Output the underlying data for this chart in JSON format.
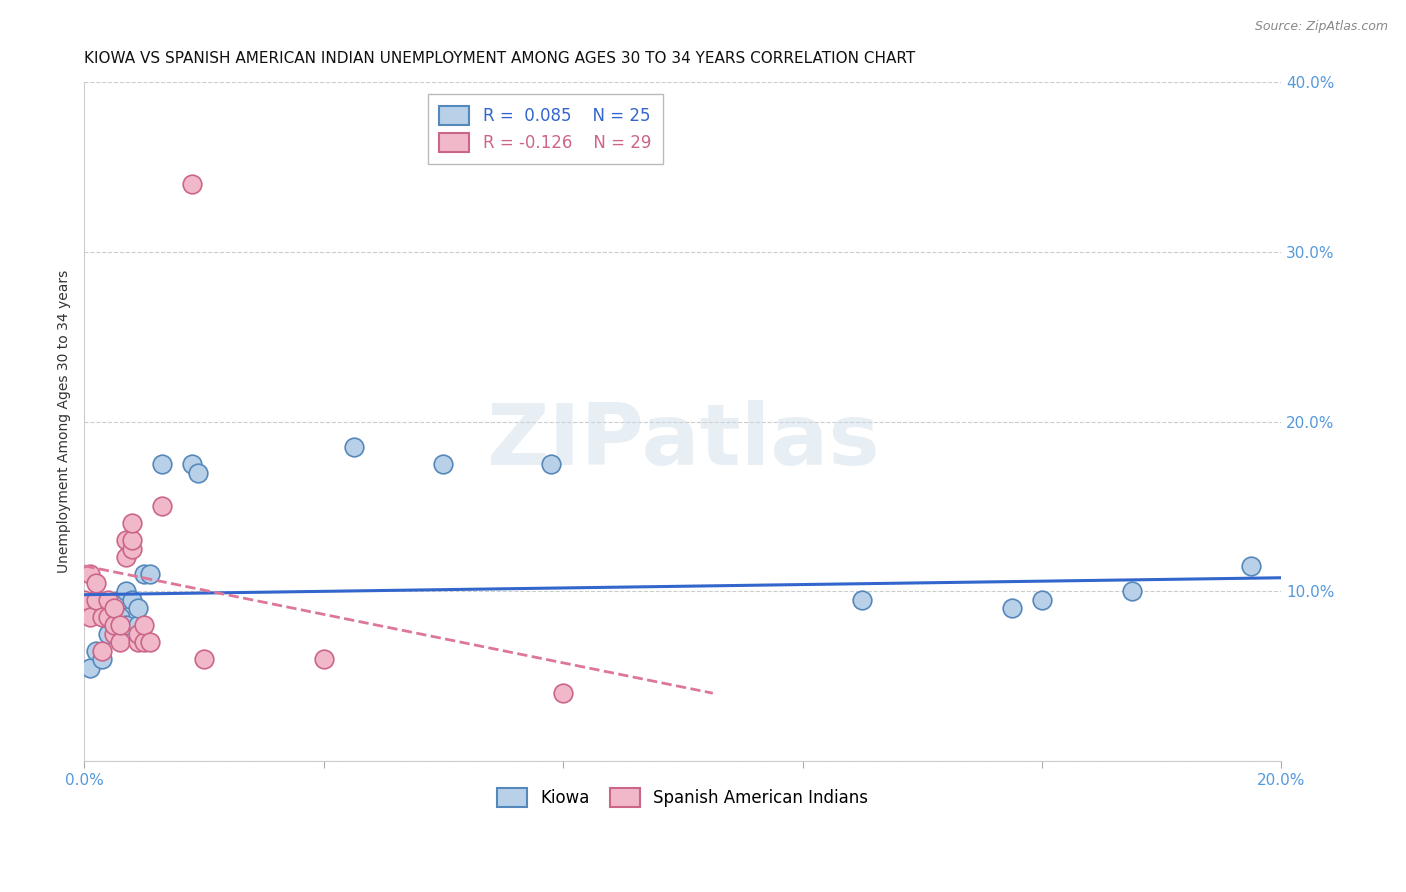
{
  "title": "KIOWA VS SPANISH AMERICAN INDIAN UNEMPLOYMENT AMONG AGES 30 TO 34 YEARS CORRELATION CHART",
  "source": "Source: ZipAtlas.com",
  "ylabel": "Unemployment Among Ages 30 to 34 years",
  "xlim": [
    0.0,
    0.2
  ],
  "ylim": [
    0.0,
    0.4
  ],
  "xticks": [
    0.0,
    0.04,
    0.08,
    0.12,
    0.16,
    0.2
  ],
  "yticks": [
    0.0,
    0.1,
    0.2,
    0.3,
    0.4
  ],
  "ytick_labels_right": [
    "",
    "10.0%",
    "20.0%",
    "30.0%",
    "40.0%"
  ],
  "kiowa_color": "#b8d0e8",
  "kiowa_edge_color": "#5588bb",
  "spanish_color": "#f0b8c8",
  "spanish_edge_color": "#cc6688",
  "trend_kiowa_color": "#3366cc",
  "trend_spanish_color": "#dd7799",
  "background_color": "#ffffff",
  "grid_color": "#cccccc",
  "kiowa_R": 0.085,
  "kiowa_N": 25,
  "spanish_R": -0.126,
  "spanish_N": 29,
  "kiowa_x": [
    0.001,
    0.002,
    0.003,
    0.004,
    0.005,
    0.006,
    0.006,
    0.007,
    0.007,
    0.008,
    0.009,
    0.009,
    0.01,
    0.011,
    0.013,
    0.018,
    0.019,
    0.045,
    0.06,
    0.078,
    0.13,
    0.155,
    0.16,
    0.175,
    0.195
  ],
  "kiowa_y": [
    0.055,
    0.065,
    0.06,
    0.075,
    0.08,
    0.085,
    0.095,
    0.08,
    0.1,
    0.095,
    0.08,
    0.09,
    0.11,
    0.11,
    0.175,
    0.175,
    0.17,
    0.185,
    0.175,
    0.175,
    0.095,
    0.09,
    0.095,
    0.1,
    0.115
  ],
  "spanish_x": [
    0.0,
    0.001,
    0.001,
    0.002,
    0.002,
    0.003,
    0.003,
    0.004,
    0.004,
    0.005,
    0.005,
    0.005,
    0.006,
    0.006,
    0.007,
    0.007,
    0.008,
    0.008,
    0.008,
    0.009,
    0.009,
    0.01,
    0.01,
    0.011,
    0.013,
    0.018,
    0.02,
    0.04,
    0.08
  ],
  "spanish_y": [
    0.095,
    0.085,
    0.11,
    0.095,
    0.105,
    0.065,
    0.085,
    0.085,
    0.095,
    0.075,
    0.08,
    0.09,
    0.07,
    0.08,
    0.12,
    0.13,
    0.125,
    0.13,
    0.14,
    0.07,
    0.075,
    0.07,
    0.08,
    0.07,
    0.15,
    0.34,
    0.06,
    0.06,
    0.04
  ],
  "kiowa_trend_x0": 0.0,
  "kiowa_trend_y0": 0.098,
  "kiowa_trend_x1": 0.2,
  "kiowa_trend_y1": 0.108,
  "spanish_trend_x0": 0.0,
  "spanish_trend_y0": 0.115,
  "spanish_trend_x1": 0.105,
  "spanish_trend_y1": 0.04,
  "watermark_text": "ZIPatlas",
  "title_fontsize": 11,
  "axis_label_fontsize": 10,
  "tick_fontsize": 11,
  "legend_fontsize": 12,
  "marker_size": 180
}
